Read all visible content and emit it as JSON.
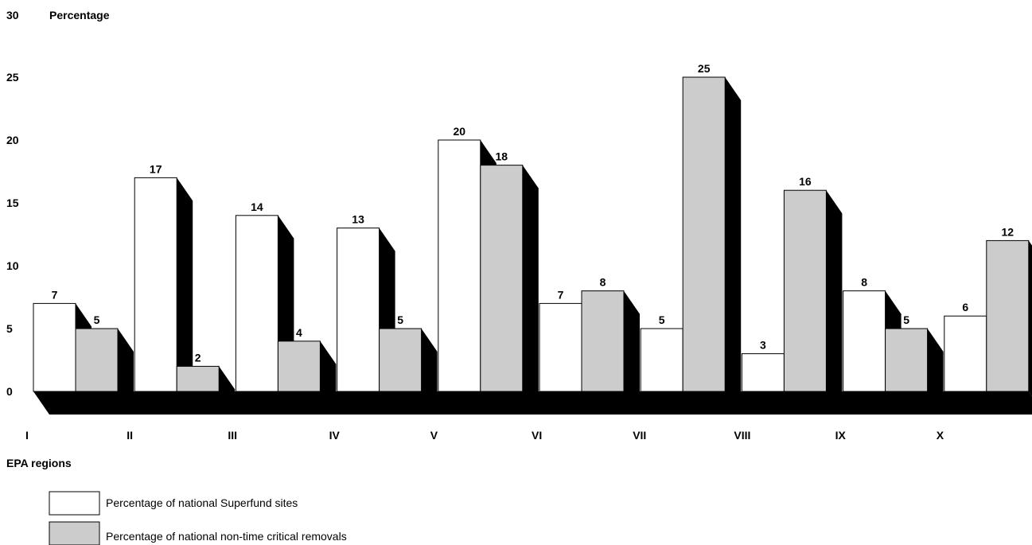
{
  "chart_data": {
    "type": "bar",
    "style": "3d-extruded",
    "ylabel": "Percentage",
    "xlabel": "EPA regions",
    "ylim": [
      0,
      30
    ],
    "yticks": [
      "0",
      "5",
      "10",
      "15",
      "20",
      "25",
      "30"
    ],
    "categories": [
      "I",
      "II",
      "III",
      "IV",
      "V",
      "VI",
      "VII",
      "VIII",
      "IX",
      "X"
    ],
    "series": [
      {
        "name": "Percentage of national Superfund sites",
        "values": [
          7,
          17,
          14,
          13,
          20,
          7,
          5,
          3,
          8,
          6
        ],
        "labels": [
          "7",
          "17",
          "14",
          "13",
          "20",
          "7",
          "5",
          "3",
          "8",
          "6"
        ]
      },
      {
        "name": "Percentage of national non-time critical removals",
        "values": [
          5,
          2,
          4,
          5,
          18,
          8,
          25,
          16,
          5,
          12
        ],
        "labels": [
          "5",
          "2",
          "4",
          "5",
          "18",
          "8",
          "25",
          "16",
          "5",
          "12"
        ]
      }
    ],
    "grid": false,
    "legend_position": "bottom-left"
  },
  "colors": {
    "series_1_fill": "#ffffff",
    "series_2_fill": "#cccccc",
    "extrusion": "#000000",
    "outline": "#000000"
  }
}
